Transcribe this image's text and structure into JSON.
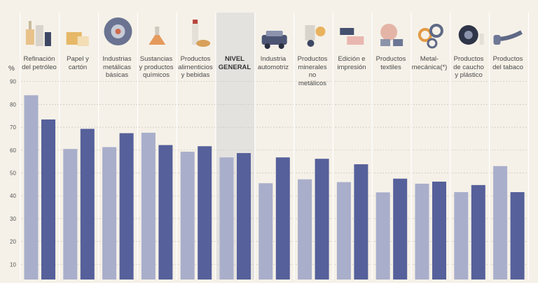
{
  "chart_data": {
    "type": "bar",
    "ylabel": "%",
    "ylim": [
      0,
      90
    ],
    "yticks": [
      10,
      20,
      30,
      40,
      50,
      60,
      70,
      80,
      90
    ],
    "grid": true,
    "highlight_category": "NIVEL\nGENERAL",
    "categories": [
      "Refinación\ndel petróleo",
      "Papel y\ncartón",
      "Industrias\nmetálicas\nbásicas",
      "Sustancias\ny productos\nquímicos",
      "Productos\nalimenticios\ny bebidas",
      "NIVEL\nGENERAL",
      "Industria\nautomotriz",
      "Productos\nminerales no\nmetálicos",
      "Edición e\nimpresión",
      "Productos\ntextiles",
      "Metal-\nmecánica(*)",
      "Productos\nde caucho\ny plástico",
      "Productos\ndel tabaco"
    ],
    "icons": [
      "oil-refinery-icon",
      "paper-boxes-icon",
      "metal-coil-icon",
      "flask-icon",
      "bottle-bread-icon",
      "",
      "car-icon",
      "hand-truck-icon",
      "paper-rolls-icon",
      "fabric-rolls-icon",
      "gears-icon",
      "tire-icon",
      "pipe-icon"
    ],
    "series": [
      {
        "color": "#a9aecb",
        "values": [
          84,
          60.5,
          61.3,
          67.6,
          59.3,
          56.8,
          45.5,
          47.2,
          46,
          41.5,
          45.3,
          41.6,
          53
        ]
      },
      {
        "color": "#56609a",
        "values": [
          73.4,
          69.3,
          67.4,
          62.2,
          61.7,
          58.7,
          56.8,
          56.2,
          53.8,
          47.5,
          46.2,
          44.7,
          41.6
        ]
      }
    ]
  }
}
